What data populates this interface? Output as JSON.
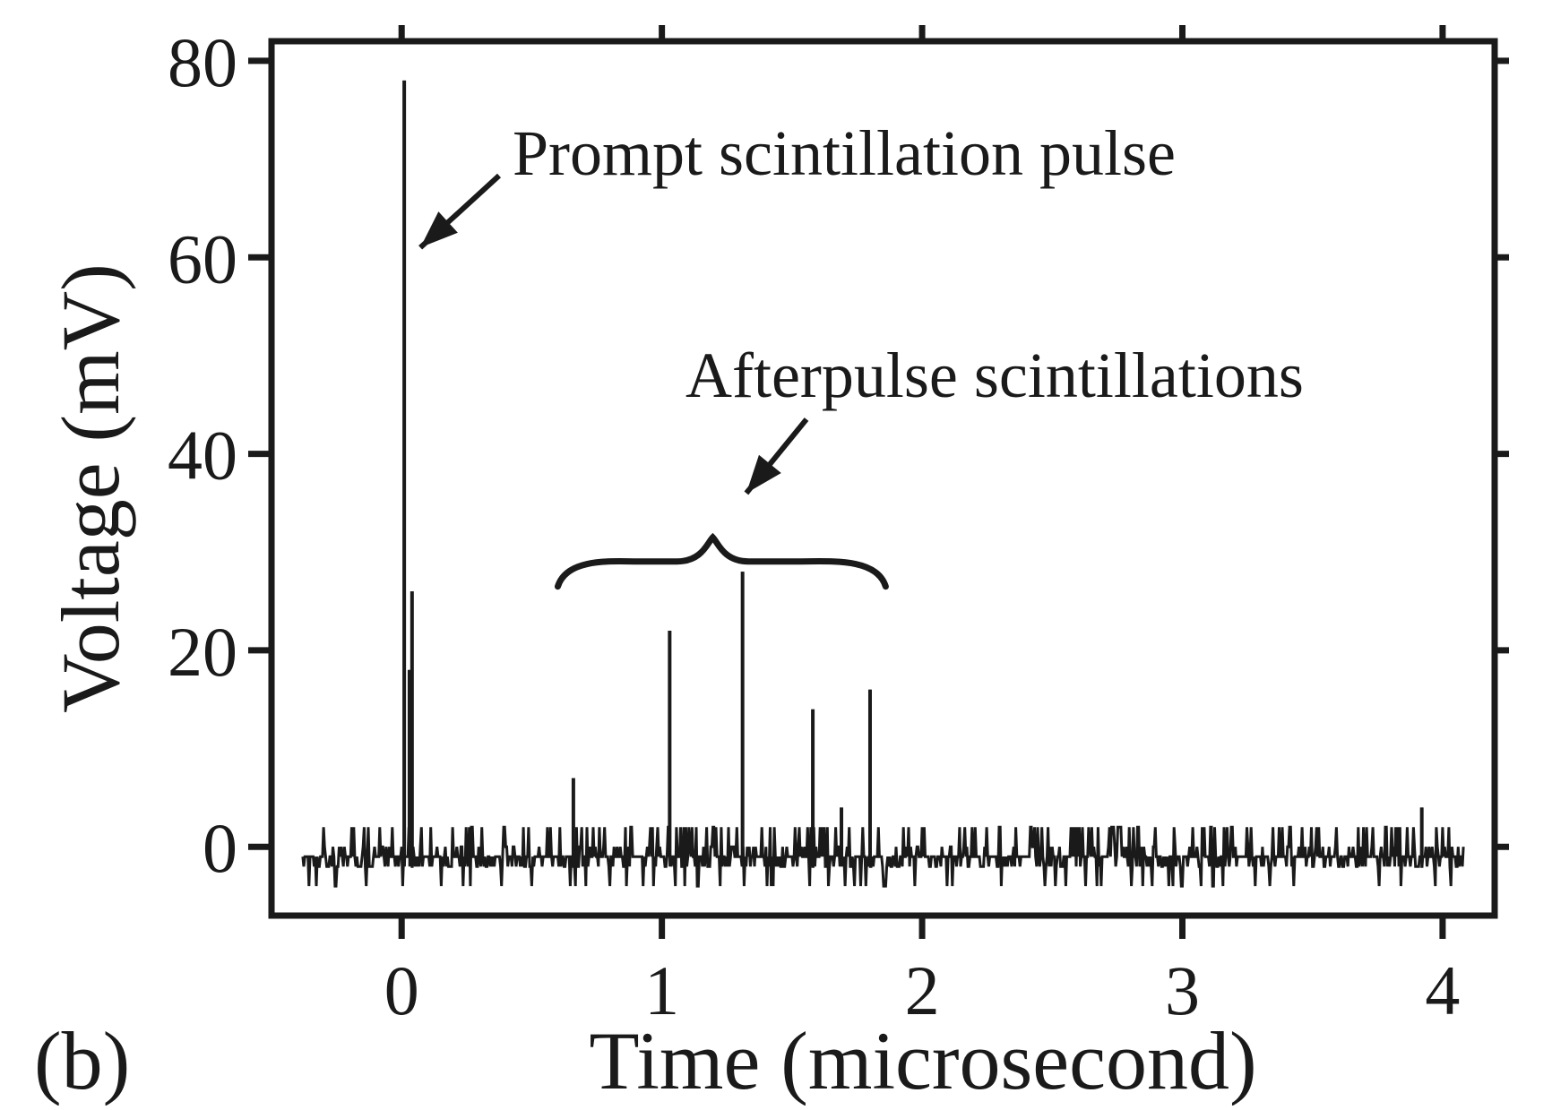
{
  "chart_data": {
    "type": "line",
    "panel_label": "(b)",
    "xlabel": "Time (microsecond)",
    "ylabel": "Voltage (mV)",
    "xlim": [
      -0.5,
      4.2
    ],
    "ylim": [
      -7,
      82
    ],
    "xticks": [
      0,
      1,
      2,
      3,
      4
    ],
    "yticks": [
      0,
      20,
      40,
      60,
      80
    ],
    "grid": false,
    "baseline_mV": -1,
    "noise_levels_mV": [
      -4,
      -2,
      0,
      2
    ],
    "x_range_us": [
      -0.38,
      4.08
    ],
    "series": [
      {
        "color": "#1a1a1a",
        "pulses": [
          {
            "t": 0.01,
            "v": 78
          },
          {
            "t": 0.04,
            "v": 26
          },
          {
            "t": 0.03,
            "v": 18
          },
          {
            "t": 0.66,
            "v": 7
          },
          {
            "t": 1.03,
            "v": 22
          },
          {
            "t": 1.31,
            "v": 28
          },
          {
            "t": 1.58,
            "v": 14
          },
          {
            "t": 1.69,
            "v": 4
          },
          {
            "t": 1.8,
            "v": 16
          },
          {
            "t": 3.92,
            "v": 4
          }
        ]
      }
    ],
    "annotations": [
      {
        "text": "Prompt scintillation pulse",
        "points_to_x": 0.01,
        "points_to_y": 61
      },
      {
        "text": "Afterpulse scintillations",
        "brace_x": [
          0.6,
          1.86
        ],
        "points_to_x": 1.29,
        "points_to_y": 36
      }
    ]
  }
}
